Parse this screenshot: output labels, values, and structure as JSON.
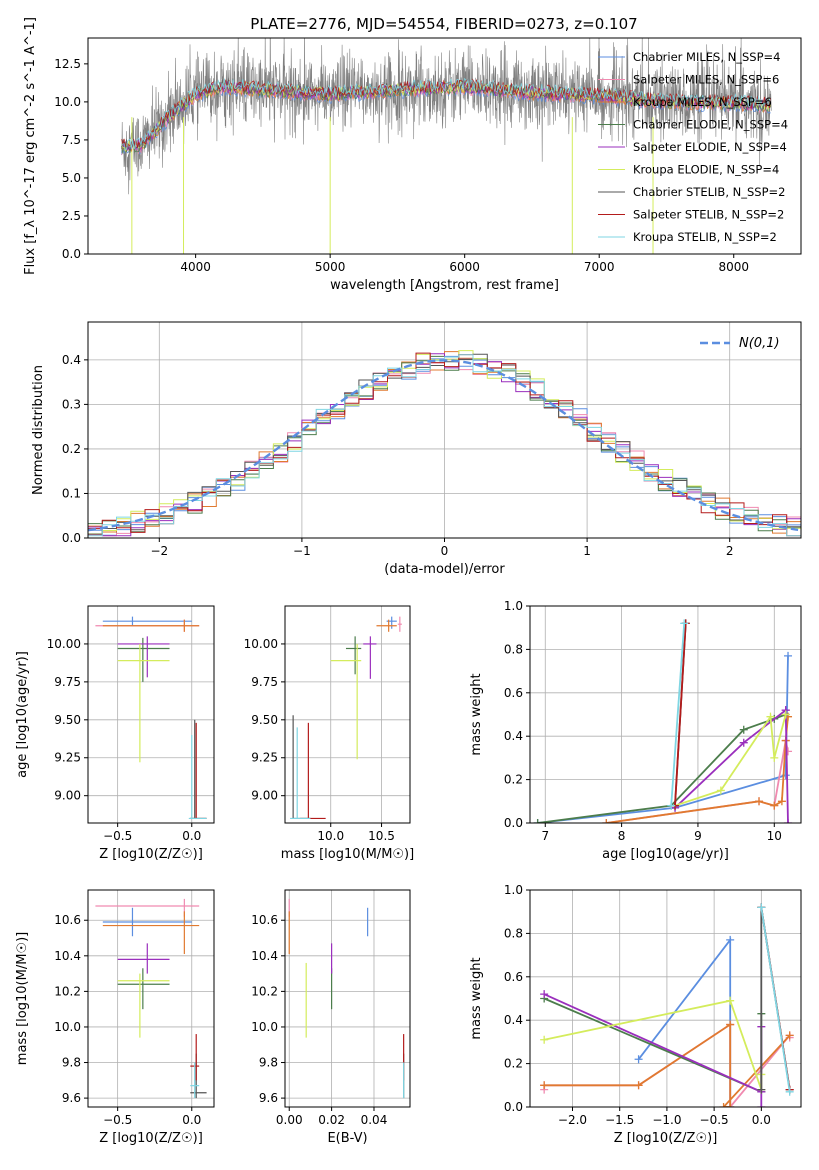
{
  "figure": {
    "title": "PLATE=2776, MJD=54554, FIBERID=0273, z=0.107"
  },
  "colors": {
    "chabrier_miles": "#5b8ee0",
    "salpeter_miles": "#f08ab0",
    "kroupa_miles": "#e07a30",
    "chabrier_elodie": "#4c7d4c",
    "salpeter_elodie": "#9a2fbd",
    "kroupa_elodie": "#d4ec5c",
    "chabrier_stelib": "#555555",
    "salpeter_stelib": "#b31b1b",
    "kroupa_stelib": "#7fd6e3",
    "data_gray": "#808080"
  },
  "chart_data": [
    {
      "id": "spectrum",
      "type": "line",
      "xlabel": "wavelength [Angstrom, rest frame]",
      "ylabel": "Flux [f_λ 10^-17 erg cm^-2 s^-1 A^-1]",
      "xlim": [
        3200,
        8500
      ],
      "ylim": [
        0,
        14.2
      ],
      "xticks": [
        4000,
        5000,
        6000,
        7000,
        8000
      ],
      "yticks": [
        0.0,
        2.5,
        5.0,
        7.5,
        10.0,
        12.5
      ],
      "legend": [
        {
          "label": "Chabrier MILES, N_SSP=4",
          "color_key": "chabrier_miles"
        },
        {
          "label": "Salpeter MILES, N_SSP=6",
          "color_key": "salpeter_miles"
        },
        {
          "label": "Kroupa MILES, N_SSP=6",
          "color_key": "kroupa_miles"
        },
        {
          "label": "Chabrier ELODIE, N_SSP=4",
          "color_key": "chabrier_elodie"
        },
        {
          "label": "Salpeter ELODIE, N_SSP=4",
          "color_key": "salpeter_elodie"
        },
        {
          "label": "Kroupa ELODIE, N_SSP=4",
          "color_key": "kroupa_elodie"
        },
        {
          "label": "Chabrier STELIB, N_SSP=2",
          "color_key": "chabrier_stelib"
        },
        {
          "label": "Salpeter STELIB, N_SSP=2",
          "color_key": "salpeter_stelib"
        },
        {
          "label": "Kroupa STELIB, N_SSP=2",
          "color_key": "kroupa_stelib"
        }
      ],
      "legend_placement": "upper-right",
      "data_range": [
        3450,
        8280
      ],
      "continuum": [
        [
          3450,
          7.0
        ],
        [
          3600,
          7.2
        ],
        [
          3800,
          9.0
        ],
        [
          4000,
          10.5
        ],
        [
          4200,
          11.0
        ],
        [
          4500,
          10.8
        ],
        [
          5000,
          10.5
        ],
        [
          5500,
          10.8
        ],
        [
          6000,
          11.0
        ],
        [
          6500,
          10.6
        ],
        [
          7000,
          10.4
        ],
        [
          7500,
          10.0
        ],
        [
          8000,
          9.9
        ],
        [
          8280,
          9.8
        ]
      ],
      "dips": [
        [
          3526,
          0
        ],
        [
          3910,
          0
        ],
        [
          5000,
          0
        ],
        [
          6800,
          0
        ],
        [
          7400,
          0
        ]
      ]
    },
    {
      "id": "residual_hist",
      "type": "line",
      "xlabel": "(data-model)/error",
      "ylabel": "Normed distribution",
      "xlim": [
        -2.5,
        2.5
      ],
      "ylim": [
        0,
        0.485
      ],
      "xticks": [
        -2,
        -1,
        0,
        1,
        2
      ],
      "yticks": [
        0.0,
        0.1,
        0.2,
        0.3,
        0.4
      ],
      "bin_width": 0.1,
      "gaussian_label": "N(0,1)",
      "gaussian_color": "#5b8ee0",
      "legend_placement": "upper-right"
    },
    {
      "id": "age_vs_Z",
      "type": "scatter",
      "xlabel": "Z [log10(Z/Z☉)]",
      "ylabel": "age  [log10(age/yr)]",
      "xlim": [
        -0.7,
        0.15
      ],
      "ylim": [
        8.82,
        10.25
      ],
      "xticks": [
        -0.5,
        0.0
      ],
      "yticks": [
        9.0,
        9.25,
        9.5,
        9.75,
        10.0
      ],
      "points": [
        {
          "key": "chabrier_miles",
          "x": -0.4,
          "y": 10.15,
          "xl": -0.6,
          "xh": 0.0,
          "yl": 10.12,
          "yh": 10.18
        },
        {
          "key": "salpeter_miles",
          "x": -0.05,
          "y": 10.12,
          "xl": -0.65,
          "xh": 0.05,
          "yl": 10.08,
          "yh": 10.16
        },
        {
          "key": "kroupa_miles",
          "x": -0.05,
          "y": 10.12,
          "xl": -0.6,
          "xh": 0.05,
          "yl": 10.08,
          "yh": 10.16
        },
        {
          "key": "chabrier_elodie",
          "x": -0.33,
          "y": 9.97,
          "xl": -0.5,
          "xh": -0.15,
          "yl": 9.75,
          "yh": 10.04
        },
        {
          "key": "salpeter_elodie",
          "x": -0.3,
          "y": 10.0,
          "xl": -0.5,
          "xh": -0.15,
          "yl": 9.78,
          "yh": 10.05
        },
        {
          "key": "kroupa_elodie",
          "x": -0.35,
          "y": 9.89,
          "xl": -0.5,
          "xh": -0.15,
          "yl": 9.22,
          "yh": 10.0
        },
        {
          "key": "chabrier_stelib",
          "x": 0.02,
          "y": 8.85,
          "xl": -0.01,
          "xh": 0.1,
          "yl": 8.85,
          "yh": 9.5
        },
        {
          "key": "salpeter_stelib",
          "x": 0.03,
          "y": 8.85,
          "xl": -0.01,
          "xh": 0.1,
          "yl": 8.85,
          "yh": 9.48
        },
        {
          "key": "kroupa_stelib",
          "x": 0.0,
          "y": 8.85,
          "xl": -0.02,
          "xh": 0.1,
          "yl": 8.85,
          "yh": 9.4
        }
      ]
    },
    {
      "id": "age_vs_mass",
      "type": "scatter",
      "xlabel": "mass [log10(M/M☉)]",
      "ylabel": "",
      "xlim": [
        9.55,
        10.78
      ],
      "ylim": [
        8.82,
        10.25
      ],
      "xticks": [
        10.0,
        10.5
      ],
      "yticks": [
        9.0,
        9.25,
        9.5,
        9.75,
        10.0
      ],
      "points": [
        {
          "key": "chabrier_miles",
          "x": 10.6,
          "y": 10.15,
          "xl": 10.55,
          "xh": 10.65,
          "yl": 10.1,
          "yh": 10.18
        },
        {
          "key": "salpeter_miles",
          "x": 10.68,
          "y": 10.13,
          "xl": 10.66,
          "xh": 10.7,
          "yl": 10.08,
          "yh": 10.18
        },
        {
          "key": "kroupa_miles",
          "x": 10.57,
          "y": 10.12,
          "xl": 10.45,
          "xh": 10.65,
          "yl": 10.08,
          "yh": 10.16
        },
        {
          "key": "chabrier_elodie",
          "x": 10.24,
          "y": 9.97,
          "xl": 10.15,
          "xh": 10.3,
          "yl": 9.8,
          "yh": 10.05
        },
        {
          "key": "salpeter_elodie",
          "x": 10.39,
          "y": 10.0,
          "xl": 10.32,
          "xh": 10.45,
          "yl": 9.77,
          "yh": 10.05
        },
        {
          "key": "kroupa_elodie",
          "x": 10.26,
          "y": 9.89,
          "xl": 10.0,
          "xh": 10.3,
          "yl": 9.24,
          "yh": 10.0
        },
        {
          "key": "chabrier_stelib",
          "x": 9.63,
          "y": 8.85,
          "xl": 9.63,
          "xh": 9.8,
          "yl": 8.85,
          "yh": 9.53
        },
        {
          "key": "salpeter_stelib",
          "x": 9.78,
          "y": 8.85,
          "xl": 9.7,
          "xh": 9.95,
          "yl": 8.85,
          "yh": 9.48
        },
        {
          "key": "kroupa_stelib",
          "x": 9.67,
          "y": 8.85,
          "xl": 9.6,
          "xh": 9.8,
          "yl": 8.85,
          "yh": 9.45
        }
      ]
    },
    {
      "id": "weight_vs_age",
      "type": "line",
      "xlabel": "age  [log10(age/yr)]",
      "ylabel": "mass weight",
      "xlim": [
        6.8,
        10.35
      ],
      "ylim": [
        0,
        1.0
      ],
      "xticks": [
        7,
        8,
        9,
        10
      ],
      "yticks": [
        0.0,
        0.2,
        0.4,
        0.6,
        0.8,
        1.0
      ],
      "series": [
        {
          "key": "chabrier_miles",
          "x": [
            6.9,
            8.7,
            10.15,
            10.18
          ],
          "y": [
            0.0,
            0.07,
            0.22,
            0.77
          ]
        },
        {
          "key": "salpeter_miles",
          "x": [
            7.8,
            9.8,
            10.0,
            10.15,
            10.18
          ],
          "y": [
            0.0,
            0.1,
            0.08,
            0.38,
            0.33
          ]
        },
        {
          "key": "kroupa_miles",
          "x": [
            7.8,
            9.8,
            10.0,
            10.1,
            10.15,
            10.18
          ],
          "y": [
            0.0,
            0.1,
            0.08,
            0.1,
            0.38,
            0.49
          ]
        },
        {
          "key": "chabrier_elodie",
          "x": [
            6.9,
            8.65,
            9.6,
            10.0,
            10.15
          ],
          "y": [
            0.0,
            0.08,
            0.43,
            0.48,
            0.5
          ]
        },
        {
          "key": "salpeter_elodie",
          "x": [
            8.7,
            9.6,
            10.15,
            10.18,
            10.15
          ],
          "y": [
            0.07,
            0.37,
            0.52,
            0.0,
            0.52
          ]
        },
        {
          "key": "kroupa_elodie",
          "x": [
            8.7,
            9.3,
            9.95,
            10.0,
            10.15
          ],
          "y": [
            0.08,
            0.15,
            0.49,
            0.3,
            0.5
          ]
        },
        {
          "key": "chabrier_stelib",
          "x": [
            8.7,
            8.84
          ],
          "y": [
            0.08,
            0.92
          ]
        },
        {
          "key": "salpeter_stelib",
          "x": [
            8.7,
            8.84
          ],
          "y": [
            0.08,
            0.92
          ]
        },
        {
          "key": "kroupa_stelib",
          "x": [
            8.65,
            8.82
          ],
          "y": [
            0.08,
            0.92
          ]
        }
      ]
    },
    {
      "id": "mass_vs_Z",
      "type": "scatter",
      "xlabel": "Z [log10(Z/Z☉)]",
      "ylabel": "mass [log10(M/M☉)]",
      "xlim": [
        -0.7,
        0.15
      ],
      "ylim": [
        9.55,
        10.77
      ],
      "xticks": [
        -0.5,
        0.0
      ],
      "yticks": [
        9.6,
        9.8,
        10.0,
        10.2,
        10.4,
        10.6
      ],
      "points": [
        {
          "key": "chabrier_miles",
          "x": -0.4,
          "y": 10.59,
          "xl": -0.6,
          "xh": 0.0,
          "yl": 10.51,
          "yh": 10.67
        },
        {
          "key": "salpeter_miles",
          "x": -0.05,
          "y": 10.68,
          "xl": -0.65,
          "xh": 0.05,
          "yl": 10.62,
          "yh": 10.72
        },
        {
          "key": "kroupa_miles",
          "x": -0.05,
          "y": 10.57,
          "xl": -0.6,
          "xh": 0.05,
          "yl": 10.41,
          "yh": 10.65
        },
        {
          "key": "chabrier_elodie",
          "x": -0.33,
          "y": 10.24,
          "xl": -0.5,
          "xh": -0.15,
          "yl": 10.1,
          "yh": 10.33
        },
        {
          "key": "salpeter_elodie",
          "x": -0.3,
          "y": 10.38,
          "xl": -0.5,
          "xh": -0.15,
          "yl": 10.3,
          "yh": 10.47
        },
        {
          "key": "kroupa_elodie",
          "x": -0.35,
          "y": 10.26,
          "xl": -0.5,
          "xh": -0.15,
          "yl": 9.94,
          "yh": 10.3
        },
        {
          "key": "chabrier_stelib",
          "x": 0.03,
          "y": 9.63,
          "xl": -0.01,
          "xh": 0.1,
          "yl": 9.6,
          "yh": 9.85
        },
        {
          "key": "salpeter_stelib",
          "x": 0.03,
          "y": 9.78,
          "xl": -0.01,
          "xh": 0.05,
          "yl": 9.7,
          "yh": 9.96
        },
        {
          "key": "kroupa_stelib",
          "x": 0.02,
          "y": 9.67,
          "xl": -0.01,
          "xh": 0.05,
          "yl": 9.6,
          "yh": 9.8
        }
      ]
    },
    {
      "id": "mass_vs_ebv",
      "type": "scatter",
      "xlabel": "E(B-V)",
      "ylabel": "",
      "xlim": [
        -0.002,
        0.057
      ],
      "ylim": [
        9.55,
        10.77
      ],
      "xticks": [
        0.0,
        0.02,
        0.04
      ],
      "yticks": [
        9.6,
        9.8,
        10.0,
        10.2,
        10.4,
        10.6
      ],
      "points": [
        {
          "key": "chabrier_miles",
          "x": 0.037,
          "y": 10.59,
          "yl": 10.51,
          "yh": 10.67
        },
        {
          "key": "salpeter_miles",
          "x": 0.0,
          "y": 10.68,
          "yl": 10.62,
          "yh": 10.72
        },
        {
          "key": "kroupa_miles",
          "x": 0.0,
          "y": 10.57,
          "yl": 10.41,
          "yh": 10.65
        },
        {
          "key": "chabrier_elodie",
          "x": 0.02,
          "y": 10.24,
          "yl": 10.1,
          "yh": 10.33
        },
        {
          "key": "salpeter_elodie",
          "x": 0.02,
          "y": 10.38,
          "yl": 10.3,
          "yh": 10.47
        },
        {
          "key": "kroupa_elodie",
          "x": 0.008,
          "y": 10.26,
          "yl": 9.94,
          "yh": 10.36
        },
        {
          "key": "chabrier_stelib",
          "x": 0.054,
          "y": 9.63,
          "yl": 9.6,
          "yh": 9.85
        },
        {
          "key": "salpeter_stelib",
          "x": 0.054,
          "y": 9.78,
          "yl": 9.7,
          "yh": 9.96
        },
        {
          "key": "kroupa_stelib",
          "x": 0.054,
          "y": 9.67,
          "yl": 9.6,
          "yh": 9.8
        }
      ]
    },
    {
      "id": "weight_vs_Z",
      "type": "line",
      "xlabel": "Z [log10(Z/Z☉)]",
      "ylabel": "mass weight",
      "xlim": [
        -2.45,
        0.42
      ],
      "ylim": [
        0,
        1.0
      ],
      "xticks": [
        -2.0,
        -1.5,
        -1.0,
        -0.5,
        0.0
      ],
      "yticks": [
        0.0,
        0.2,
        0.4,
        0.6,
        0.8,
        1.0
      ],
      "series": [
        {
          "key": "chabrier_miles",
          "x": [
            -1.3,
            -0.33,
            -0.33
          ],
          "y": [
            0.22,
            0.77,
            0.0
          ]
        },
        {
          "key": "salpeter_miles",
          "x": [
            -2.3,
            -2.3,
            -1.3,
            -0.33,
            -0.33,
            0.3,
            0.3
          ],
          "y": [
            0.08,
            0.1,
            0.1,
            0.38,
            0.0,
            0.33,
            0.32
          ]
        },
        {
          "key": "kroupa_miles",
          "x": [
            -2.3,
            -1.3,
            -0.33,
            -0.33,
            -0.4,
            0.3
          ],
          "y": [
            0.1,
            0.1,
            0.38,
            0.0,
            0.0,
            0.33
          ]
        },
        {
          "key": "chabrier_elodie",
          "x": [
            -2.3,
            0.0,
            0.0
          ],
          "y": [
            0.5,
            0.07,
            0.43
          ]
        },
        {
          "key": "salpeter_elodie",
          "x": [
            -2.3,
            0.0,
            0.0,
            0.0
          ],
          "y": [
            0.52,
            0.07,
            0.37,
            0.0
          ]
        },
        {
          "key": "kroupa_elodie",
          "x": [
            -2.3,
            -0.33,
            0.0,
            0.0
          ],
          "y": [
            0.31,
            0.49,
            0.08,
            0.15
          ]
        },
        {
          "key": "chabrier_stelib",
          "x": [
            0.0,
            0.0,
            0.3
          ],
          "y": [
            0.08,
            0.92,
            0.08
          ]
        },
        {
          "key": "salpeter_stelib",
          "x": [
            0.0,
            0.3
          ],
          "y": [
            0.92,
            0.08
          ]
        },
        {
          "key": "kroupa_stelib",
          "x": [
            0.0,
            0.3
          ],
          "y": [
            0.92,
            0.07
          ]
        }
      ]
    }
  ]
}
